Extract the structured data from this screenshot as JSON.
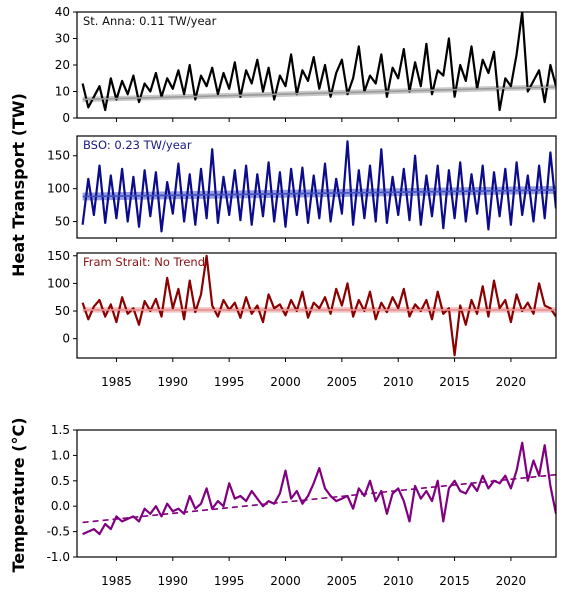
{
  "chart_data": [
    {
      "type": "line",
      "annotation": "St. Anna: 0.11 TW/year",
      "annotation_color": "#111111",
      "color": "#000000",
      "band_color": "#9a9a9a",
      "ylabel": "Heat Transport (TW)",
      "xlim": [
        1981.5,
        2024.0
      ],
      "ylim": [
        0,
        40
      ],
      "yticks": [
        "0",
        "10",
        "20",
        "30",
        "40"
      ],
      "series": [
        {
          "x": [
            1982.0,
            1982.5,
            1983.0,
            1983.5,
            1984.0,
            1984.5,
            1985.0,
            1985.5,
            1986.0,
            1986.5,
            1987.0,
            1987.5,
            1988.0,
            1988.5,
            1989.0,
            1989.5,
            1990.0,
            1990.5,
            1991.0,
            1991.5,
            1992.0,
            1992.5,
            1993.0,
            1993.5,
            1994.0,
            1994.5,
            1995.0,
            1995.5,
            1996.0,
            1996.5,
            1997.0,
            1997.5,
            1998.0,
            1998.5,
            1999.0,
            1999.5,
            2000.0,
            2000.5,
            2001.0,
            2001.5,
            2002.0,
            2002.5,
            2003.0,
            2003.5,
            2004.0,
            2004.5,
            2005.0,
            2005.5,
            2006.0,
            2006.5,
            2007.0,
            2007.5,
            2008.0,
            2008.5,
            2009.0,
            2009.5,
            2010.0,
            2010.5,
            2011.0,
            2011.5,
            2012.0,
            2012.5,
            2013.0,
            2013.5,
            2014.0,
            2014.5,
            2015.0,
            2015.5,
            2016.0,
            2016.5,
            2017.0,
            2017.5,
            2018.0,
            2018.5,
            2019.0,
            2019.5,
            2020.0,
            2020.5,
            2021.0,
            2021.5,
            2022.0,
            2022.5,
            2023.0,
            2023.5,
            2024.0
          ],
          "y": [
            13,
            4,
            8,
            12,
            3,
            15,
            7,
            14,
            9,
            16,
            6,
            13,
            10,
            17,
            8,
            15,
            11,
            18,
            9,
            20,
            7,
            16,
            12,
            19,
            9,
            17,
            11,
            21,
            8,
            18,
            13,
            22,
            10,
            19,
            7,
            16,
            12,
            24,
            9,
            18,
            14,
            23,
            11,
            20,
            8,
            17,
            22,
            9,
            15,
            27,
            10,
            16,
            13,
            24,
            8,
            19,
            15,
            26,
            10,
            21,
            12,
            28,
            9,
            18,
            16,
            30,
            8,
            20,
            14,
            27,
            11,
            22,
            17,
            25,
            3,
            15,
            12,
            24,
            40,
            10,
            14,
            18,
            6,
            20,
            12
          ],
          "trend": [
            7.0,
            11.7
          ],
          "band": 1.0
        }
      ]
    },
    {
      "type": "line",
      "annotation": "BSO: 0.23 TW/year",
      "annotation_color": "#1a1a80",
      "color": "#0b0b8c",
      "band_color": "#3f4fc0",
      "xlim": [
        1981.5,
        2024.0
      ],
      "ylim": [
        25,
        180
      ],
      "yticks": [
        "50",
        "100",
        "150"
      ],
      "series": [
        {
          "x": [
            1982.0,
            1982.5,
            1983.0,
            1983.5,
            1984.0,
            1984.5,
            1985.0,
            1985.5,
            1986.0,
            1986.5,
            1987.0,
            1987.5,
            1988.0,
            1988.5,
            1989.0,
            1989.5,
            1990.0,
            1990.5,
            1991.0,
            1991.5,
            1992.0,
            1992.5,
            1993.0,
            1993.5,
            1994.0,
            1994.5,
            1995.0,
            1995.5,
            1996.0,
            1996.5,
            1997.0,
            1997.5,
            1998.0,
            1998.5,
            1999.0,
            1999.5,
            2000.0,
            2000.5,
            2001.0,
            2001.5,
            2002.0,
            2002.5,
            2003.0,
            2003.5,
            2004.0,
            2004.5,
            2005.0,
            2005.5,
            2006.0,
            2006.5,
            2007.0,
            2007.5,
            2008.0,
            2008.5,
            2009.0,
            2009.5,
            2010.0,
            2010.5,
            2011.0,
            2011.5,
            2012.0,
            2012.5,
            2013.0,
            2013.5,
            2014.0,
            2014.5,
            2015.0,
            2015.5,
            2016.0,
            2016.5,
            2017.0,
            2017.5,
            2018.0,
            2018.5,
            2019.0,
            2019.5,
            2020.0,
            2020.5,
            2021.0,
            2021.5,
            2022.0,
            2022.5,
            2023.0,
            2023.5,
            2024.0
          ],
          "y": [
            45,
            115,
            60,
            135,
            48,
            120,
            55,
            130,
            50,
            118,
            42,
            128,
            58,
            125,
            35,
            110,
            62,
            138,
            50,
            122,
            45,
            130,
            55,
            160,
            48,
            118,
            60,
            128,
            52,
            135,
            45,
            122,
            58,
            140,
            50,
            125,
            42,
            130,
            60,
            132,
            48,
            120,
            55,
            138,
            50,
            115,
            62,
            172,
            45,
            128,
            55,
            135,
            50,
            160,
            48,
            118,
            60,
            130,
            52,
            150,
            45,
            120,
            58,
            135,
            40,
            128,
            55,
            140,
            50,
            122,
            62,
            135,
            38,
            125,
            58,
            130,
            45,
            140,
            60,
            120,
            50,
            135,
            55,
            155,
            70
          ],
          "trend": [
            88,
            98
          ],
          "band": 6
        }
      ]
    },
    {
      "type": "line",
      "annotation": "Fram Strait: No Trend",
      "annotation_color": "#8a1010",
      "color": "#8b0000",
      "band_color": "#e79090",
      "xlim": [
        1981.5,
        2024.0
      ],
      "ylim": [
        -35,
        155
      ],
      "yticks": [
        "0",
        "50",
        "100",
        "150"
      ],
      "series": [
        {
          "x": [
            1982.0,
            1982.5,
            1983.0,
            1983.5,
            1984.0,
            1984.5,
            1985.0,
            1985.5,
            1986.0,
            1986.5,
            1987.0,
            1987.5,
            1988.0,
            1988.5,
            1989.0,
            1989.5,
            1990.0,
            1990.5,
            1991.0,
            1991.5,
            1992.0,
            1992.5,
            1993.0,
            1993.5,
            1994.0,
            1994.5,
            1995.0,
            1995.5,
            1996.0,
            1996.5,
            1997.0,
            1997.5,
            1998.0,
            1998.5,
            1999.0,
            1999.5,
            2000.0,
            2000.5,
            2001.0,
            2001.5,
            2002.0,
            2002.5,
            2003.0,
            2003.5,
            2004.0,
            2004.5,
            2005.0,
            2005.5,
            2006.0,
            2006.5,
            2007.0,
            2007.5,
            2008.0,
            2008.5,
            2009.0,
            2009.5,
            2010.0,
            2010.5,
            2011.0,
            2011.5,
            2012.0,
            2012.5,
            2013.0,
            2013.5,
            2014.0,
            2014.5,
            2015.0,
            2015.5,
            2016.0,
            2016.5,
            2017.0,
            2017.5,
            2018.0,
            2018.5,
            2019.0,
            2019.5,
            2020.0,
            2020.5,
            2021.0,
            2021.5,
            2022.0,
            2022.5,
            2023.0,
            2023.5,
            2024.0
          ],
          "y": [
            65,
            35,
            58,
            70,
            40,
            62,
            30,
            75,
            45,
            55,
            25,
            68,
            50,
            72,
            40,
            110,
            55,
            90,
            35,
            105,
            48,
            80,
            150,
            60,
            40,
            70,
            52,
            65,
            38,
            75,
            45,
            60,
            30,
            80,
            55,
            62,
            42,
            70,
            50,
            85,
            38,
            65,
            55,
            75,
            45,
            90,
            60,
            100,
            40,
            70,
            50,
            85,
            35,
            65,
            48,
            75,
            55,
            90,
            40,
            62,
            50,
            70,
            35,
            85,
            45,
            55,
            -30,
            60,
            25,
            70,
            45,
            95,
            40,
            105,
            55,
            70,
            30,
            80,
            50,
            65,
            45,
            100,
            60,
            55,
            40
          ],
          "trend": [
            52,
            52
          ],
          "band": 5
        }
      ]
    },
    {
      "type": "line",
      "ylabel": "Temperature ($^\\circ$C)",
      "color": "#800080",
      "xlim": [
        1981.5,
        2024.0
      ],
      "ylim": [
        -1.0,
        1.5
      ],
      "yticks": [
        "-1.0",
        "-0.5",
        "0.0",
        "0.5",
        "1.0",
        "1.5"
      ],
      "xticks": [
        "1985",
        "1990",
        "1995",
        "2000",
        "2005",
        "2010",
        "2015",
        "2020"
      ],
      "series": [
        {
          "x": [
            1982.0,
            1982.5,
            1983.0,
            1983.5,
            1984.0,
            1984.5,
            1985.0,
            1985.5,
            1986.0,
            1986.5,
            1987.0,
            1987.5,
            1988.0,
            1988.5,
            1989.0,
            1989.5,
            1990.0,
            1990.5,
            1991.0,
            1991.5,
            1992.0,
            1992.5,
            1993.0,
            1993.5,
            1994.0,
            1994.5,
            1995.0,
            1995.5,
            1996.0,
            1996.5,
            1997.0,
            1997.5,
            1998.0,
            1998.5,
            1999.0,
            1999.5,
            2000.0,
            2000.5,
            2001.0,
            2001.5,
            2002.0,
            2002.5,
            2003.0,
            2003.5,
            2004.0,
            2004.5,
            2005.0,
            2005.5,
            2006.0,
            2006.5,
            2007.0,
            2007.5,
            2008.0,
            2008.5,
            2009.0,
            2009.5,
            2010.0,
            2010.5,
            2011.0,
            2011.5,
            2012.0,
            2012.5,
            2013.0,
            2013.5,
            2014.0,
            2014.5,
            2015.0,
            2015.5,
            2016.0,
            2016.5,
            2017.0,
            2017.5,
            2018.0,
            2018.5,
            2019.0,
            2019.5,
            2020.0,
            2020.5,
            2021.0,
            2021.5,
            2022.0,
            2022.5,
            2023.0,
            2023.5,
            2024.0
          ],
          "y": [
            -0.55,
            -0.5,
            -0.45,
            -0.55,
            -0.35,
            -0.45,
            -0.2,
            -0.3,
            -0.25,
            -0.2,
            -0.3,
            -0.05,
            -0.15,
            0.0,
            -0.2,
            0.05,
            -0.1,
            -0.05,
            -0.15,
            0.2,
            -0.05,
            0.05,
            0.35,
            -0.05,
            0.1,
            0.0,
            0.45,
            0.15,
            0.2,
            0.1,
            0.3,
            0.15,
            0.0,
            0.1,
            0.05,
            0.25,
            0.7,
            0.15,
            0.3,
            0.05,
            0.2,
            0.45,
            0.75,
            0.35,
            0.2,
            0.1,
            0.15,
            0.2,
            -0.05,
            0.35,
            0.2,
            0.5,
            0.1,
            0.3,
            -0.15,
            0.25,
            0.35,
            0.1,
            -0.3,
            0.4,
            0.15,
            0.3,
            0.1,
            0.5,
            -0.3,
            0.35,
            0.5,
            0.3,
            0.25,
            0.45,
            0.3,
            0.6,
            0.35,
            0.5,
            0.45,
            0.6,
            0.35,
            0.7,
            1.25,
            0.5,
            0.9,
            0.6,
            1.2,
            0.4,
            -0.15
          ],
          "trend": [
            -0.32,
            0.62
          ]
        }
      ]
    }
  ]
}
